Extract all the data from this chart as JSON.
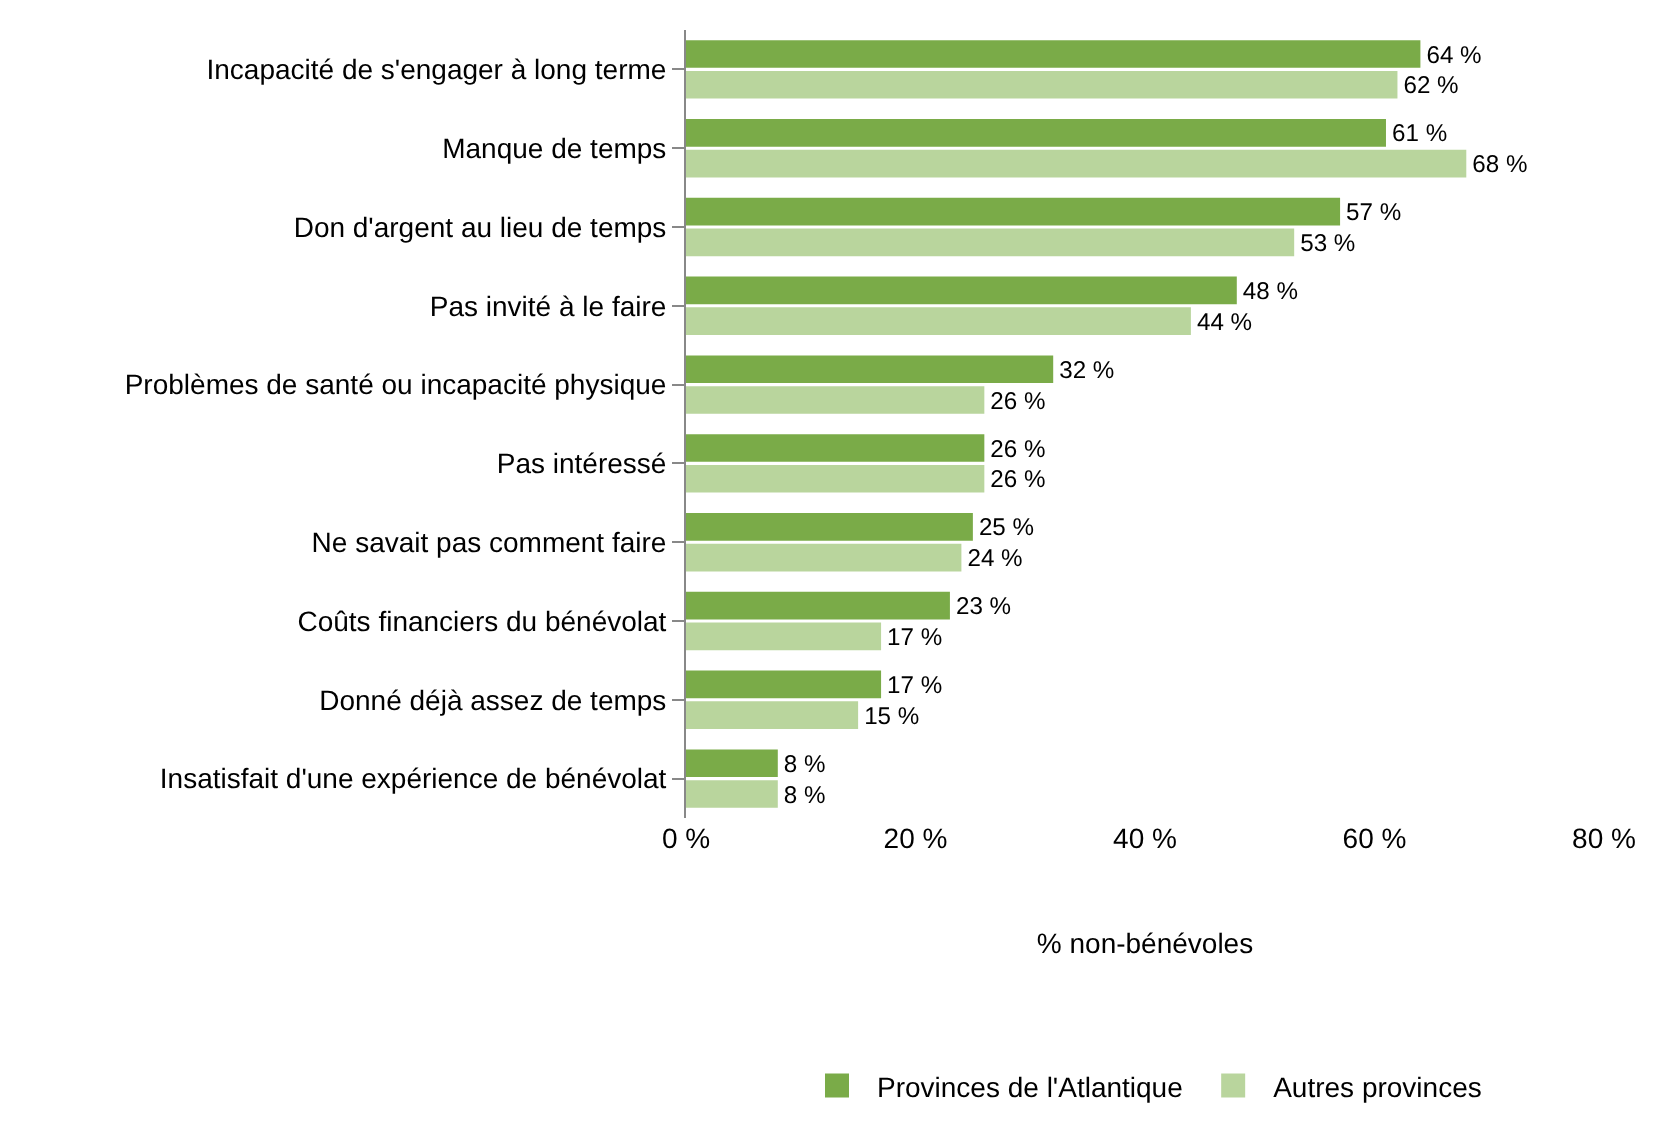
{
  "chart_data": {
    "type": "bar",
    "orientation": "horizontal",
    "xlabel": "% non-bénévoles",
    "legend": "bottom",
    "grid": false,
    "categories": [
      "Incapacité de s'engager à long terme",
      "Manque de temps",
      "Don d'argent au lieu de temps",
      "Pas invité à le faire",
      "Problèmes de santé ou incapacité physique",
      "Pas intéressé",
      "Ne savait pas comment faire",
      "Coûts financiers du bénévolat",
      "Donné déjà assez de temps",
      "Insatisfait d'une expérience de bénévolat"
    ],
    "series": [
      {
        "name": "Provinces de l'Atlantique",
        "color": "#7aab48",
        "values": [
          64,
          61,
          57,
          48,
          32,
          26,
          25,
          23,
          17,
          8
        ],
        "value_labels": [
          "64 %",
          "61 %",
          "57 %",
          "48 %",
          "32 %",
          "26 %",
          "25 %",
          "23 %",
          "17 %",
          "8 %"
        ]
      },
      {
        "name": "Autres provinces",
        "color": "#b9d59d",
        "values": [
          62,
          68,
          53,
          44,
          26,
          26,
          24,
          17,
          15,
          8
        ],
        "value_labels": [
          "62 %",
          "68 %",
          "53 %",
          "44 %",
          "26 %",
          "26 %",
          "24 %",
          "17 %",
          "15 %",
          "8 %"
        ]
      }
    ],
    "xlim": [
      0,
      80
    ],
    "xticks": [
      {
        "value": 0,
        "label": "0 %"
      },
      {
        "value": 20,
        "label": "20 %"
      },
      {
        "value": 40,
        "label": "40 %"
      },
      {
        "value": 60,
        "label": "60 %"
      },
      {
        "value": 80,
        "label": "80 %"
      }
    ]
  }
}
